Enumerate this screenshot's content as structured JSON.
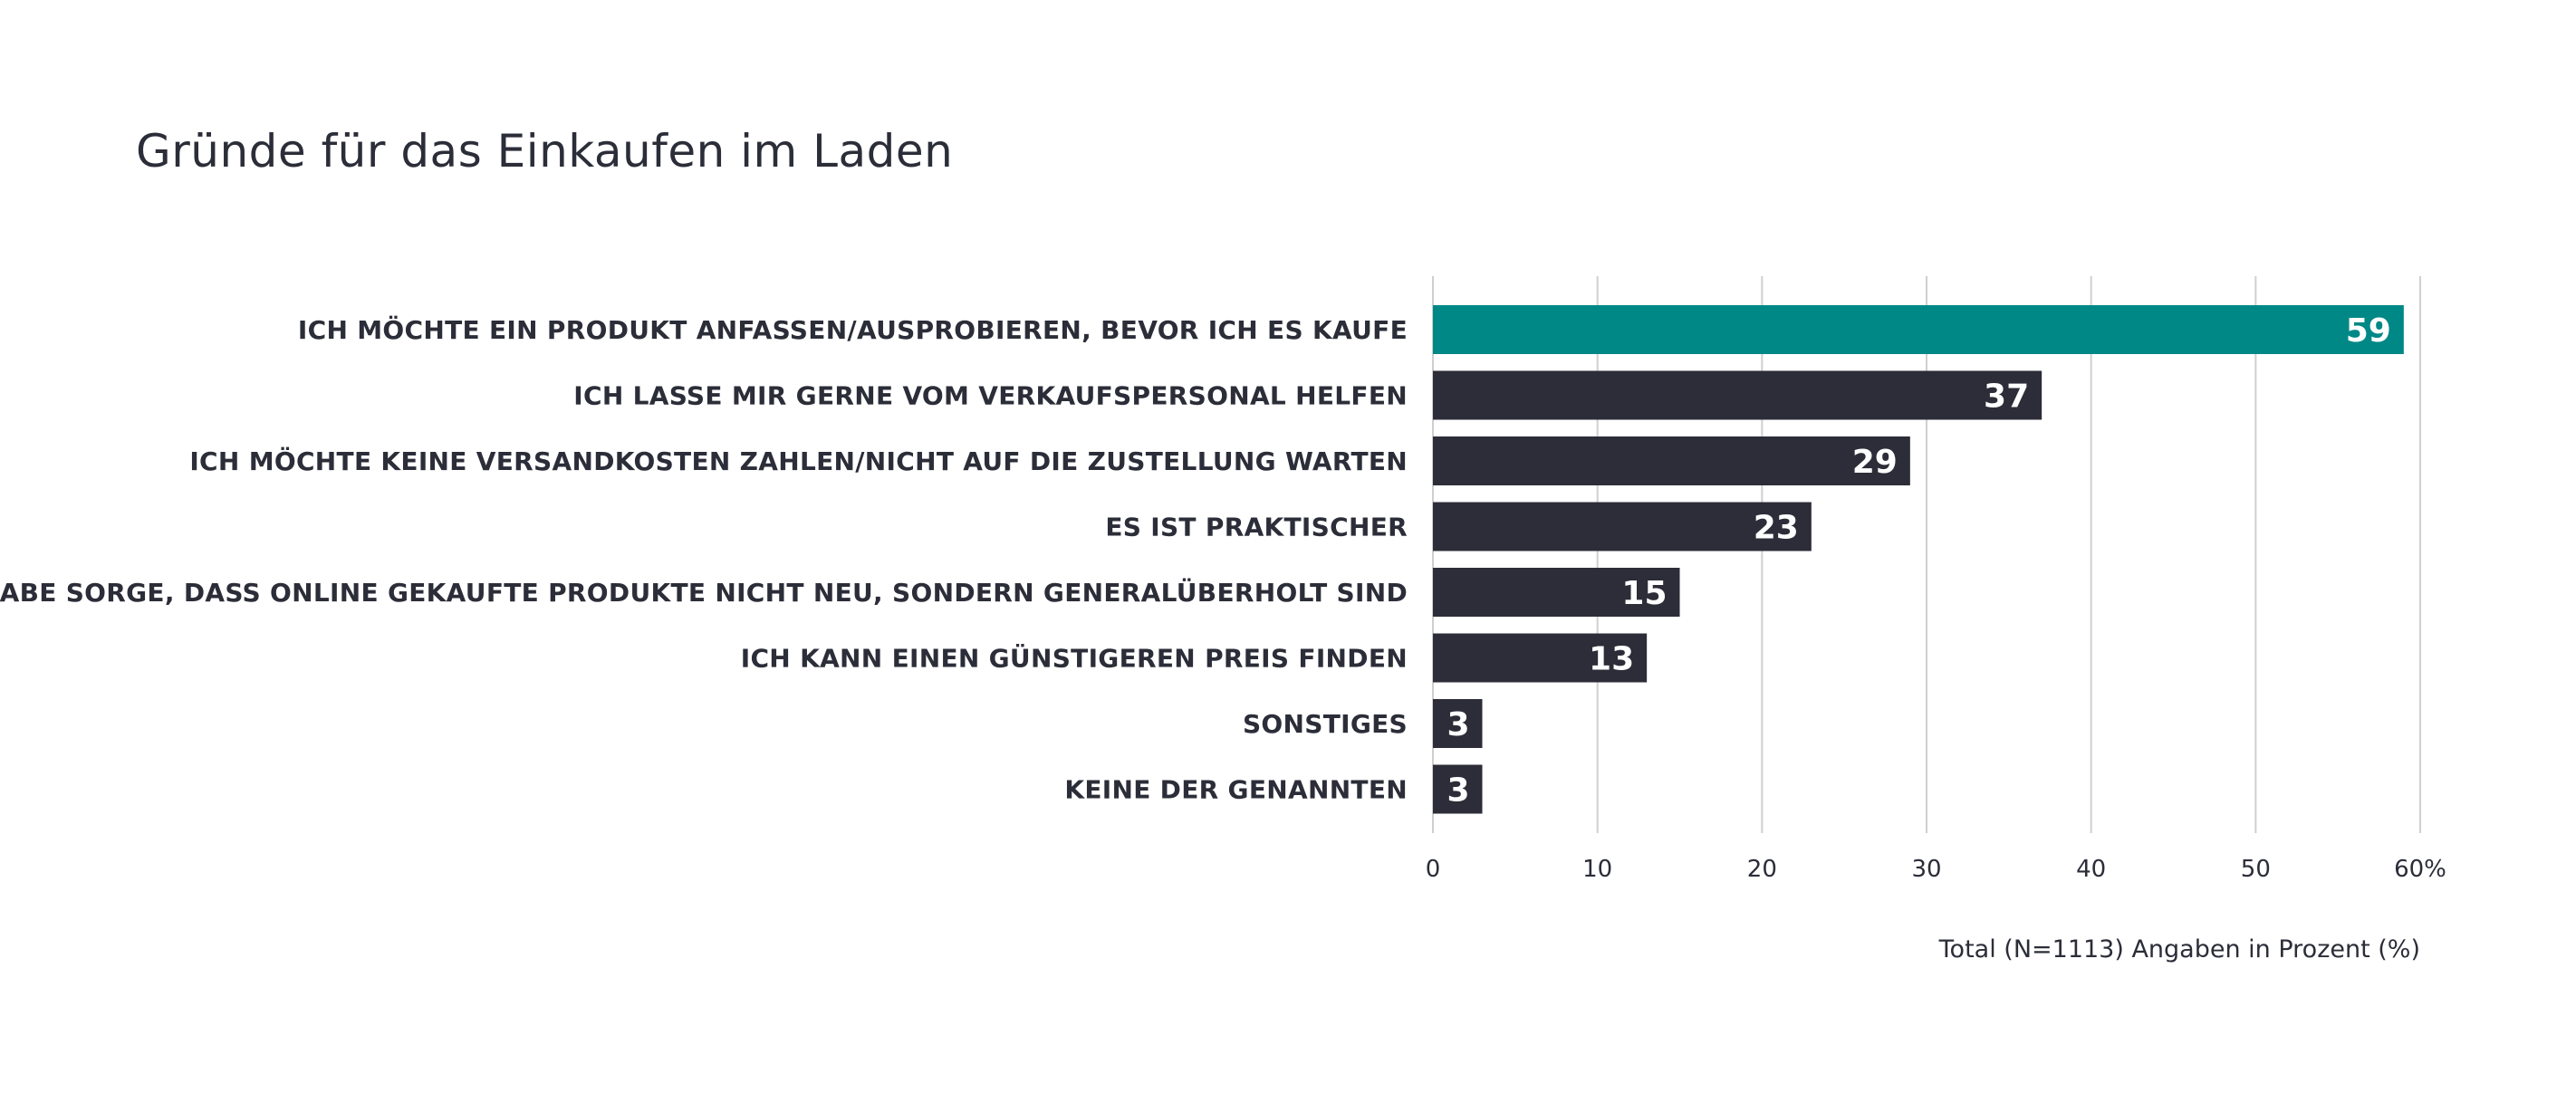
{
  "colors": {
    "highlight": "#008886",
    "bar": "#2c2d38",
    "text": "#2b2d38",
    "value_text": "#ffffff",
    "grid": "#cfcfcf"
  },
  "chart_data": {
    "type": "bar",
    "orientation": "horizontal",
    "title": "Gründe für das Einkaufen im Laden",
    "categories": [
      "ICH MÖCHTE EIN PRODUKT ANFASSEN/AUSPROBIEREN, BEVOR ICH ES KAUFE",
      "ICH LASSE MIR GERNE VOM VERKAUFSPERSONAL HELFEN",
      "ICH MÖCHTE KEINE VERSANDKOSTEN ZAHLEN/NICHT AUF DIE ZUSTELLUNG WARTEN",
      "ES IST PRAKTISCHER",
      "ICH HABE SORGE, DASS ONLINE GEKAUFTE PRODUKTE NICHT NEU, SONDERN GENERALÜBERHOLT SIND",
      "ICH KANN EINEN GÜNSTIGEREN PREIS FINDEN",
      "SONSTIGES",
      "KEINE DER GENANNTEN"
    ],
    "values": [
      59,
      37,
      29,
      23,
      15,
      13,
      3,
      3
    ],
    "value_labels": [
      "59",
      "37",
      "29",
      "23",
      "15",
      "13",
      "3",
      "3"
    ],
    "highlighted_index": 0,
    "xlim": [
      0,
      60
    ],
    "x_ticks": [
      0,
      10,
      20,
      30,
      40,
      50,
      60
    ],
    "x_tick_labels": [
      "0",
      "10",
      "20",
      "30",
      "40",
      "50",
      "60%"
    ],
    "grid": "vertical",
    "note": "Total (N=1113) Angaben in Prozent (%)"
  }
}
